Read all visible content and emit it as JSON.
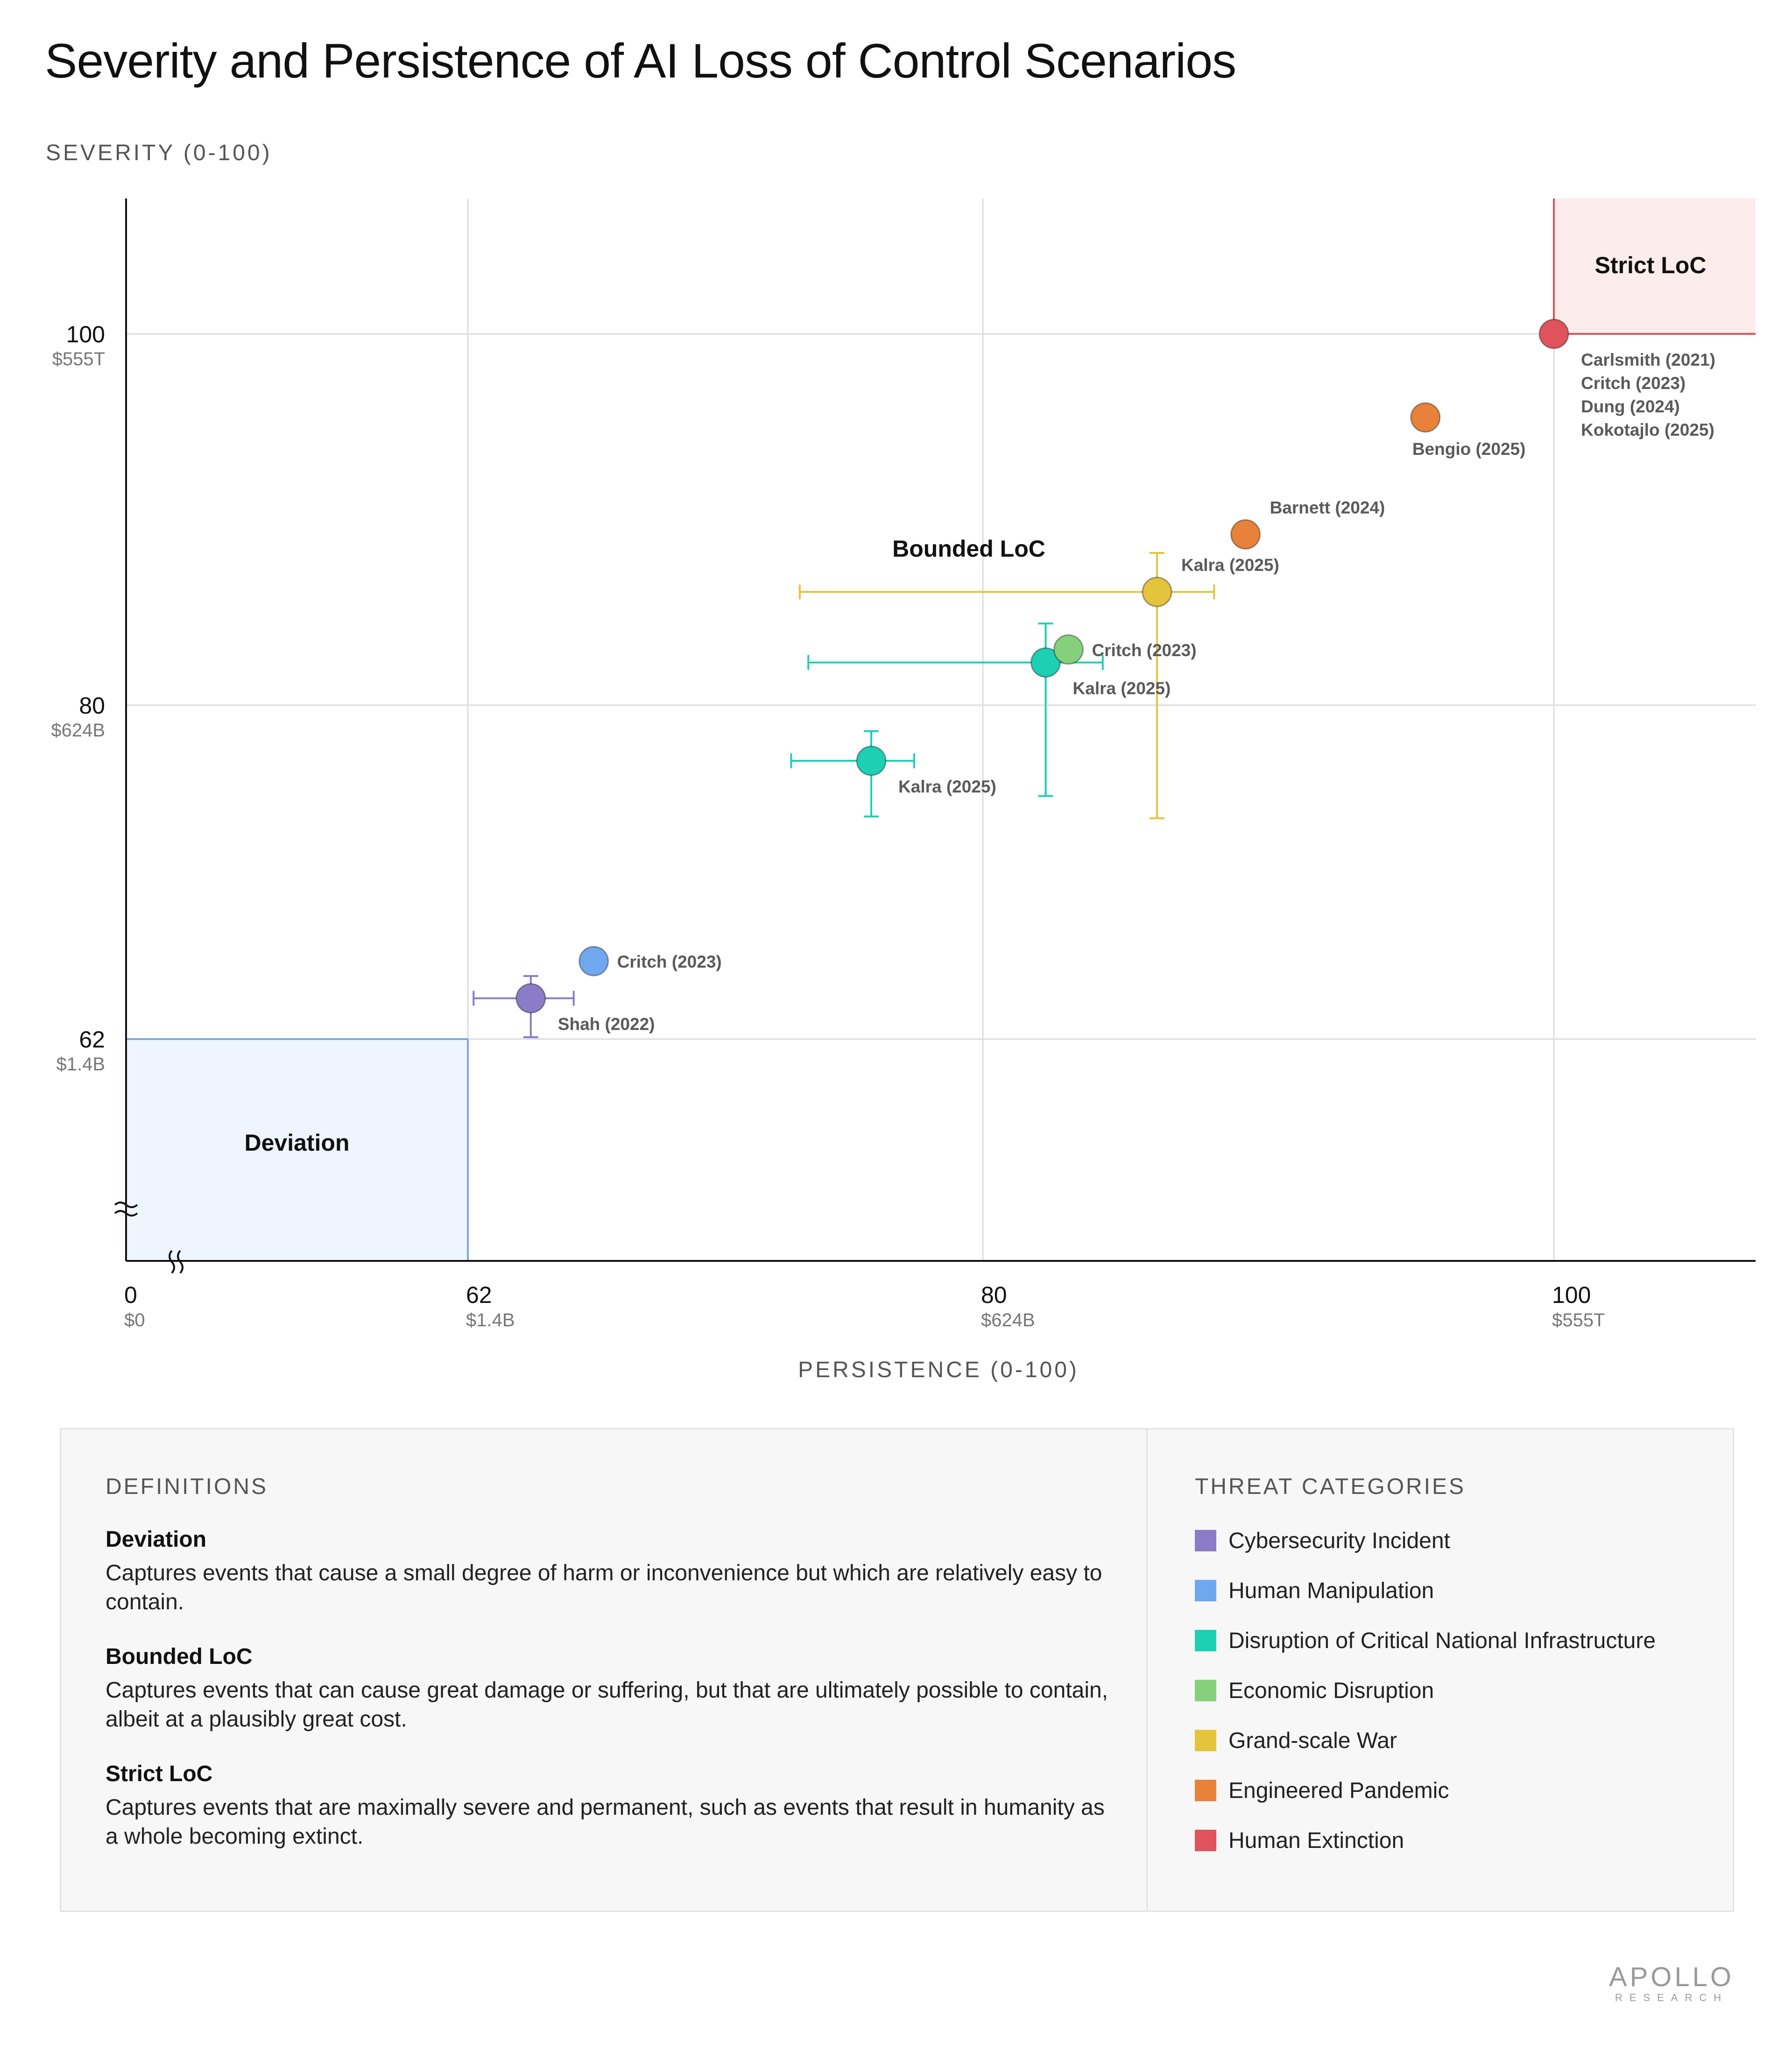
{
  "title": "Severity and Persistence of AI Loss of Control Scenarios",
  "colors": {
    "cybersecurity": "#8b7cc8",
    "manipulation": "#6fa8ef",
    "infrastructure": "#1ecfb4",
    "economic": "#86d07c",
    "war": "#e4c43c",
    "pandemic": "#e8823a",
    "extinction": "#e0535c",
    "deviation_fill": "#eff5fe",
    "deviation_stroke": "#7aa8e0",
    "strict_fill": "#fcecec",
    "strict_stroke": "#e0535c"
  },
  "chart_data": {
    "type": "scatter",
    "title": "Severity and Persistence of AI Loss of Control Scenarios",
    "xlabel": "PERSISTENCE (0-100)",
    "ylabel": "SEVERITY (0-100)",
    "axis_break": true,
    "grid": true,
    "x_ticks": [
      {
        "value": 0,
        "label": "0",
        "sublabel": "$0"
      },
      {
        "value": 62,
        "label": "62",
        "sublabel": "$1.4B"
      },
      {
        "value": 80,
        "label": "80",
        "sublabel": "$624B"
      },
      {
        "value": 100,
        "label": "100",
        "sublabel": "$555T"
      }
    ],
    "y_ticks": [
      {
        "value": 62,
        "label": "62",
        "sublabel": "$1.4B"
      },
      {
        "value": 80,
        "label": "80",
        "sublabel": "$624B"
      },
      {
        "value": 100,
        "label": "100",
        "sublabel": "$555T"
      }
    ],
    "regions": [
      {
        "name": "Deviation",
        "x": [
          0,
          62
        ],
        "y": [
          0,
          62
        ],
        "color": "deviation"
      },
      {
        "name": "Bounded LoC",
        "x": [
          62,
          100
        ],
        "y": [
          62,
          100
        ],
        "color": "none"
      },
      {
        "name": "Strict LoC",
        "x": [
          100,
          107
        ],
        "y": [
          100,
          107
        ],
        "color": "strict"
      }
    ],
    "points": [
      {
        "category": "Cybersecurity Incident",
        "x": 64.2,
        "y": 64.2,
        "x_err": [
          62.2,
          65.7
        ],
        "y_err": [
          62.1,
          65.4
        ],
        "label": "Shah (2022)",
        "label_pos": "below-right"
      },
      {
        "category": "Human Manipulation",
        "x": 66.4,
        "y": 66.2,
        "label": "Critch (2023)",
        "label_pos": "right"
      },
      {
        "category": "Disruption of Critical National Infrastructure",
        "x": 76.1,
        "y": 77.0,
        "x_err": [
          73.3,
          77.6
        ],
        "y_err": [
          74.0,
          78.6
        ],
        "label": "Kalra (2025)",
        "label_pos": "below-right"
      },
      {
        "category": "Disruption of Critical National Infrastructure",
        "x": 82.2,
        "y": 82.3,
        "x_err": [
          73.9,
          84.2
        ],
        "y_err": [
          75.1,
          84.4
        ],
        "label": "Kalra (2025)",
        "label_pos": "below-right"
      },
      {
        "category": "Economic Disruption",
        "x": 83.0,
        "y": 83.0,
        "label": "Critch (2023)",
        "label_pos": "right"
      },
      {
        "category": "Grand-scale War",
        "x": 86.1,
        "y": 86.1,
        "x_err": [
          73.6,
          88.1
        ],
        "y_err": [
          73.9,
          88.2
        ],
        "label": "Kalra (2025)",
        "label_pos": "above-right"
      },
      {
        "category": "Engineered Pandemic",
        "x": 89.2,
        "y": 89.2,
        "label": "Barnett (2024)",
        "label_pos": "above-right"
      },
      {
        "category": "Engineered Pandemic",
        "x": 95.5,
        "y": 95.5,
        "label": "Bengio (2025)",
        "label_pos": "below"
      },
      {
        "category": "Human Extinction",
        "x": 100,
        "y": 100,
        "label": "Carlsmith (2021)\nCritch (2023)\nDung (2024)\nKokotajlo (2025)",
        "label_pos": "below-right"
      }
    ],
    "legend_placement": "bottom-right panel"
  },
  "definitions": {
    "heading": "DEFINITIONS",
    "items": [
      {
        "name": "Deviation",
        "text": "Captures events that cause a small degree of harm or inconvenience but which are relatively easy to contain."
      },
      {
        "name": "Bounded LoC",
        "text": "Captures events that can cause great damage or suffering, but that are ultimately possible to contain, albeit at a plausibly great cost."
      },
      {
        "name": "Strict LoC",
        "text": "Captures events that are maximally severe and permanent, such as events that result in humanity as a whole becoming extinct."
      }
    ]
  },
  "legend": {
    "heading": "THREAT CATEGORIES",
    "items": [
      {
        "label": "Cybersecurity Incident",
        "color": "#8b7cc8"
      },
      {
        "label": "Human Manipulation",
        "color": "#6fa8ef"
      },
      {
        "label": "Disruption of Critical National Infrastructure",
        "color": "#1ecfb4"
      },
      {
        "label": "Economic Disruption",
        "color": "#86d07c"
      },
      {
        "label": "Grand-scale War",
        "color": "#e4c43c"
      },
      {
        "label": "Engineered Pandemic",
        "color": "#e8823a"
      },
      {
        "label": "Human Extinction",
        "color": "#e0535c"
      }
    ]
  },
  "logo": {
    "main": "APOLLO",
    "sub": "RESEARCH"
  }
}
